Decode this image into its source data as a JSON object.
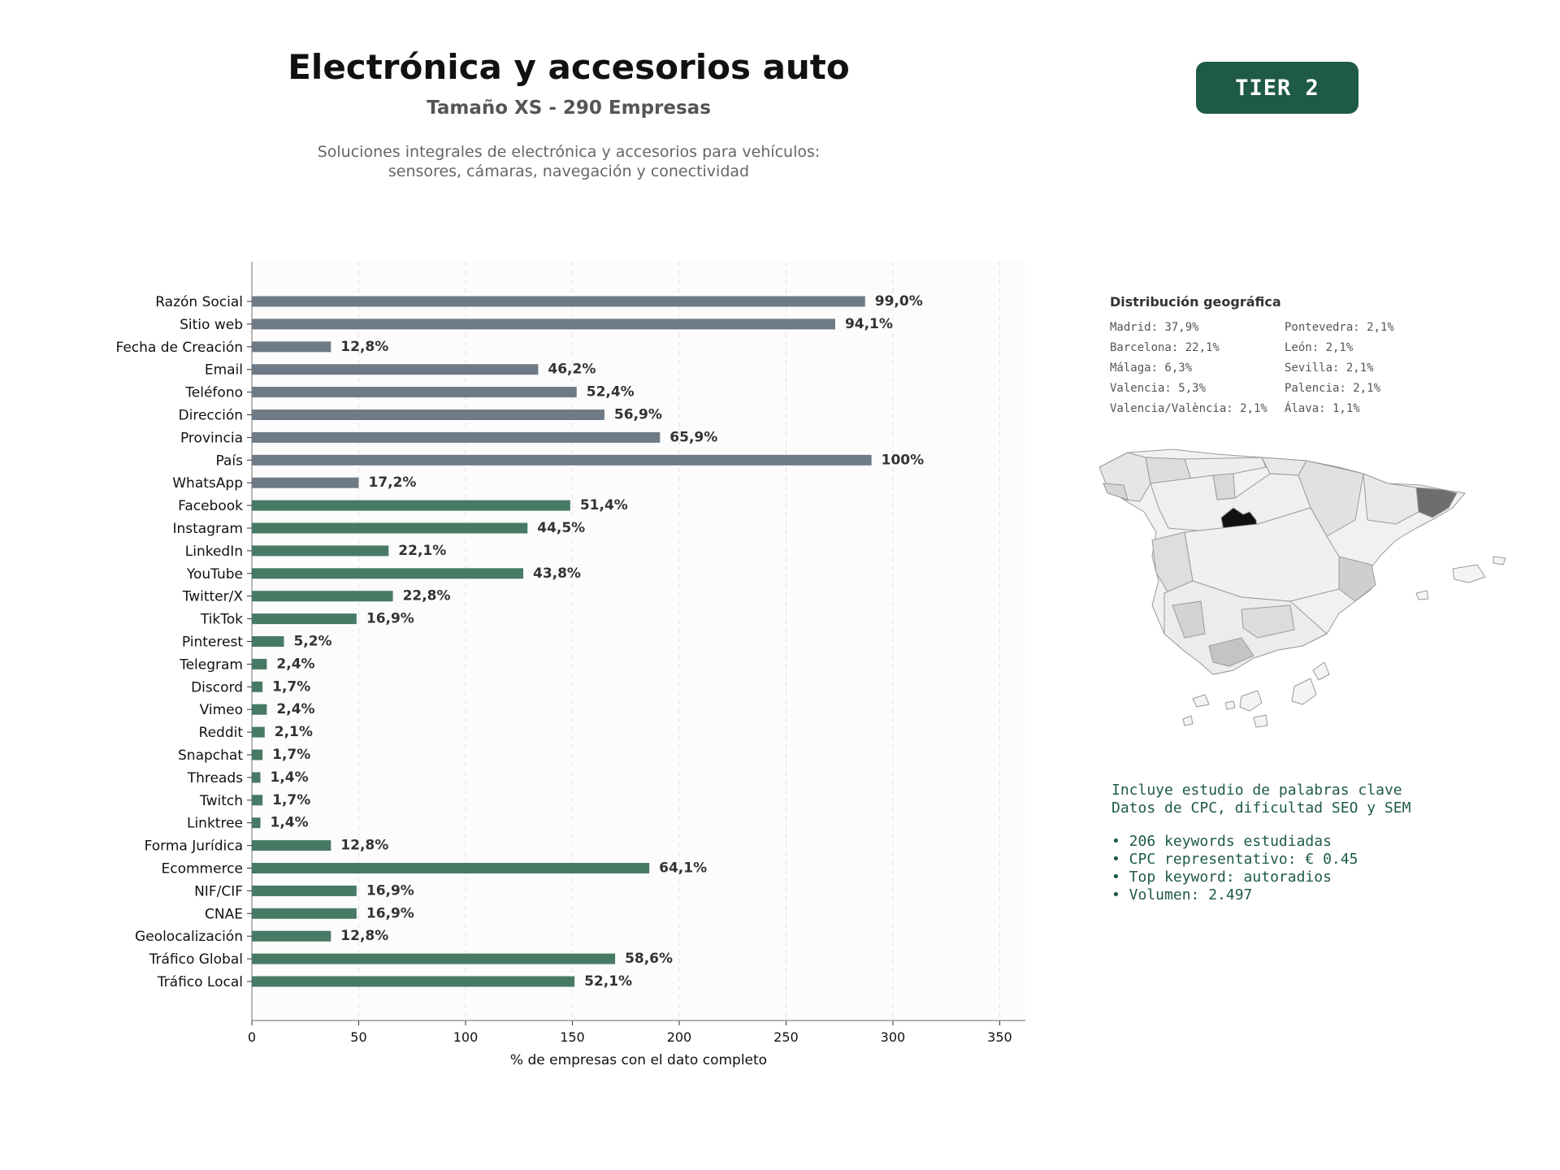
{
  "header": {
    "title": "Electrónica y accesorios auto",
    "subtitle": "Tamaño XS - 290 Empresas",
    "description": "Soluciones integrales de electrónica y accesorios para vehículos:\nsensores, cámaras, navegación y conectividad"
  },
  "badge": {
    "label": "TIER 2"
  },
  "colors": {
    "gray_bar": "#6e7b86",
    "green_bar": "#477a65",
    "badge": "#1e5a45",
    "label_text": "#333333"
  },
  "chart_data": {
    "type": "bar",
    "orientation": "horizontal",
    "xlabel": "% de empresas con el dato completo",
    "xlim": [
      0,
      362
    ],
    "xticks": [
      0,
      50,
      100,
      150,
      200,
      250,
      300,
      350
    ],
    "grid": "vertical dashed",
    "categories": [
      "Razón Social",
      "Sitio web",
      "Fecha de Creación",
      "Email",
      "Teléfono",
      "Dirección",
      "Provincia",
      "País",
      "WhatsApp",
      "Facebook",
      "Instagram",
      "LinkedIn",
      "YouTube",
      "Twitter/X",
      "TikTok",
      "Pinterest",
      "Telegram",
      "Discord",
      "Vimeo",
      "Reddit",
      "Snapchat",
      "Threads",
      "Twitch",
      "Linktree",
      "Forma Jurídica",
      "Ecommerce",
      "NIF/CIF",
      "CNAE",
      "Geolocalización",
      "Tráfico Global",
      "Tráfico Local"
    ],
    "values": [
      287,
      273,
      37,
      134,
      152,
      165,
      191,
      290,
      50,
      149,
      129,
      64,
      127,
      66,
      49,
      15,
      7,
      5,
      7,
      6,
      5,
      4,
      5,
      4,
      37,
      186,
      49,
      49,
      37,
      170,
      151
    ],
    "labels": [
      "99,0%",
      "94,1%",
      "12,8%",
      "46,2%",
      "52,4%",
      "56,9%",
      "65,9%",
      "100%",
      "17,2%",
      "51,4%",
      "44,5%",
      "22,1%",
      "43,8%",
      "22,8%",
      "16,9%",
      "5,2%",
      "2,4%",
      "1,7%",
      "2,4%",
      "2,1%",
      "1,7%",
      "1,4%",
      "1,7%",
      "1,4%",
      "12,8%",
      "64,1%",
      "16,9%",
      "16,9%",
      "12,8%",
      "58,6%",
      "52,1%"
    ],
    "groups": [
      "gray",
      "gray",
      "gray",
      "gray",
      "gray",
      "gray",
      "gray",
      "gray",
      "gray",
      "green",
      "green",
      "green",
      "green",
      "green",
      "green",
      "green",
      "green",
      "green",
      "green",
      "green",
      "green",
      "green",
      "green",
      "green",
      "green",
      "green",
      "green",
      "green",
      "green",
      "green",
      "green"
    ]
  },
  "geo": {
    "title": "Distribución geográfica",
    "items": [
      "Madrid: 37,9%",
      "Pontevedra: 2,1%",
      "Barcelona: 22,1%",
      "León: 2,1%",
      "Málaga: 6,3%",
      "Sevilla: 2,1%",
      "Valencia: 5,3%",
      "Palencia: 2,1%",
      "Valencia/València: 2,1%",
      "Álava: 1,1%"
    ]
  },
  "keywords": {
    "intro_1": "Incluye estudio de palabras clave",
    "intro_2": "Datos de CPC, dificultad SEO y SEM",
    "bullets": [
      "• 206 keywords estudiadas",
      "• CPC representativo: € 0.45",
      "• Top keyword: autoradios",
      "• Volumen: 2.497"
    ]
  }
}
